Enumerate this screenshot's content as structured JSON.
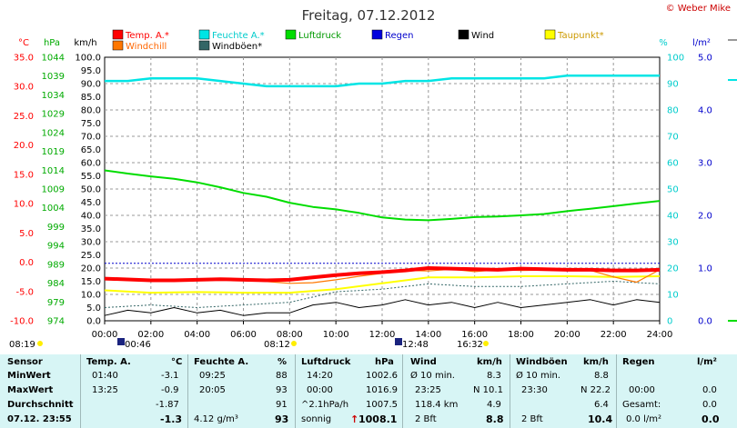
{
  "title": "Freitag, 07.12.2012",
  "copyright": "© Weber Mike",
  "colors": {
    "temp": "#ff0000",
    "humidity": "#00e5e5",
    "pressure": "#00dd00",
    "rain": "#0000dd",
    "wind": "#000000",
    "dewpoint": "#ffff00",
    "windchill": "#ff7700",
    "gusts": "#336666"
  },
  "axes": {
    "celsius": {
      "unit": "°C",
      "ticks": [
        "35.0",
        "30.0",
        "25.0",
        "20.0",
        "15.0",
        "10.0",
        "5.0",
        "0.0",
        "-5.0",
        "-10.0"
      ]
    },
    "hpa": {
      "unit": "hPa",
      "ticks": [
        "1044",
        "1039",
        "1034",
        "1029",
        "1024",
        "1019",
        "1014",
        "1009",
        "1004",
        "999",
        "994",
        "989",
        "984",
        "979",
        "974"
      ]
    },
    "kmh": {
      "unit": "km/h",
      "ticks": [
        "100.0",
        "95.0",
        "90.0",
        "85.0",
        "80.0",
        "75.0",
        "70.0",
        "65.0",
        "60.0",
        "55.0",
        "50.0",
        "45.0",
        "40.0",
        "35.0",
        "30.0",
        "25.0",
        "20.0",
        "15.0",
        "10.0",
        "5.0",
        "0.0"
      ]
    },
    "percent": {
      "unit": "%",
      "ticks": [
        "100",
        "90",
        "80",
        "70",
        "60",
        "50",
        "40",
        "30",
        "20",
        "10",
        "0"
      ]
    },
    "rain": {
      "unit": "l/m²",
      "ticks": [
        "5.0",
        "4.0",
        "3.0",
        "2.0",
        "1.0",
        "0.0"
      ]
    },
    "time": {
      "ticks": [
        "00:00",
        "02:00",
        "04:00",
        "06:00",
        "08:00",
        "10:00",
        "12:00",
        "14:00",
        "16:00",
        "18:00",
        "20:00",
        "22:00",
        "24:00"
      ]
    }
  },
  "events": {
    "sunrise": "08:19",
    "moonset": "00:46",
    "sunset": "08:12",
    "moonrise": "12:48",
    "time_1632": "16:32"
  },
  "chart_data": {
    "type": "line",
    "title": "Freitag, 07.12.2012",
    "x_unit": "hour",
    "xlim": [
      0,
      24
    ],
    "series": [
      {
        "name": "Temp. A.*",
        "axis": "°C",
        "color": "#ff0000",
        "x": [
          0,
          2,
          3,
          4,
          5,
          6,
          7,
          8,
          9,
          10,
          11,
          12,
          13,
          14,
          15,
          16,
          17,
          18,
          19,
          20,
          21,
          22,
          23,
          24
        ],
        "y": [
          -2.8,
          -3.1,
          -3.1,
          -3.0,
          -2.9,
          -3.0,
          -3.1,
          -3.0,
          -2.6,
          -2.2,
          -1.9,
          -1.7,
          -1.4,
          -1.0,
          -1.1,
          -1.2,
          -1.3,
          -1.1,
          -1.2,
          -1.3,
          -1.3,
          -1.4,
          -1.4,
          -1.3
        ]
      },
      {
        "name": "Feuchte A.*",
        "axis": "%",
        "color": "#00e5e5",
        "x": [
          0,
          1,
          2,
          3,
          4,
          5,
          6,
          7,
          8,
          9,
          10,
          11,
          12,
          13,
          14,
          15,
          16,
          17,
          18,
          19,
          20,
          21,
          22,
          23,
          24
        ],
        "y": [
          91,
          91,
          92,
          92,
          92,
          91,
          90,
          89,
          89,
          89,
          89,
          90,
          90,
          91,
          91,
          92,
          92,
          92,
          92,
          92,
          93,
          93,
          93,
          93,
          93
        ]
      },
      {
        "name": "Luftdruck",
        "axis": "hPa",
        "color": "#00dd00",
        "x": [
          0,
          1,
          2,
          3,
          4,
          5,
          6,
          7,
          8,
          9,
          10,
          11,
          12,
          13,
          14,
          15,
          16,
          17,
          18,
          19,
          20,
          21,
          22,
          23,
          24
        ],
        "y": [
          1016.8,
          1015.9,
          1015.1,
          1014.4,
          1013.4,
          1012.0,
          1010.4,
          1009.3,
          1007.6,
          1006.4,
          1005.7,
          1004.7,
          1003.4,
          1002.8,
          1002.6,
          1003.0,
          1003.5,
          1003.7,
          1004.0,
          1004.4,
          1005.2,
          1005.9,
          1006.6,
          1007.4,
          1008.1
        ]
      },
      {
        "name": "Regen",
        "axis": "l/m²",
        "color": "#0000dd",
        "x": [
          0,
          24
        ],
        "y": [
          0.0,
          0.0
        ]
      },
      {
        "name": "Wind",
        "axis": "km/h",
        "color": "#000000",
        "x": [
          0,
          1,
          2,
          3,
          4,
          5,
          6,
          7,
          8,
          9,
          10,
          11,
          12,
          13,
          14,
          15,
          16,
          17,
          18,
          19,
          20,
          21,
          22,
          23,
          24
        ],
        "y": [
          2,
          4,
          3,
          5,
          3,
          4,
          2,
          3,
          3,
          6,
          7,
          5,
          6,
          8,
          6,
          7,
          5,
          7,
          5,
          6,
          7,
          8,
          6,
          8,
          7
        ]
      },
      {
        "name": "Taupunkt*",
        "axis": "°C",
        "color": "#ffff00",
        "x": [
          0,
          2,
          4,
          6,
          8,
          10,
          12,
          14,
          16,
          18,
          20,
          22,
          24
        ],
        "y": [
          -4.8,
          -5.2,
          -5.1,
          -5.2,
          -5.2,
          -4.6,
          -3.6,
          -2.6,
          -2.6,
          -2.4,
          -2.4,
          -2.5,
          -2.4
        ]
      },
      {
        "name": "Windchill",
        "axis": "°C",
        "color": "#ff7700",
        "x": [
          0,
          2,
          4,
          6,
          8,
          9,
          10,
          11,
          12,
          13,
          14,
          15,
          16,
          17,
          18,
          20,
          21,
          22,
          23,
          24
        ],
        "y": [
          -2.8,
          -3.1,
          -3.0,
          -3.0,
          -3.6,
          -3.5,
          -3.0,
          -2.4,
          -1.9,
          -1.4,
          -1.5,
          -1.2,
          -1.6,
          -1.3,
          -1.4,
          -1.3,
          -1.4,
          -2.5,
          -3.4,
          -1.3
        ]
      },
      {
        "name": "Windböen*",
        "axis": "km/h",
        "color": "#336666",
        "x": [
          0,
          2,
          4,
          6,
          8,
          10,
          12,
          14,
          16,
          18,
          20,
          22,
          24
        ],
        "y": [
          5,
          6,
          5,
          6,
          7,
          11,
          12,
          14,
          13,
          13,
          14,
          15,
          14
        ]
      }
    ]
  },
  "table": {
    "headers": {
      "sensor": "Sensor",
      "temp": "Temp. A.",
      "temp_unit": "°C",
      "humidity": "Feuchte A.",
      "humidity_unit": "%",
      "pressure": "Luftdruck",
      "pressure_unit": "hPa",
      "wind": "Wind",
      "wind_unit": "km/h",
      "gusts": "Windböen",
      "gusts_unit": "km/h",
      "rain": "Regen",
      "rain_unit": "l/m²"
    },
    "row_labels": {
      "min": "MinWert",
      "max": "MaxWert",
      "avg": "Durchschnitt",
      "current": "07.12. 23:55"
    },
    "min": {
      "temp_time": "01:40",
      "temp": "-3.1",
      "hum_time": "09:25",
      "hum": "88",
      "pres_time": "14:20",
      "pres": "1002.6",
      "wind_label": "Ø 10 min.",
      "wind": "8.3",
      "gust_label": "Ø 10 min.",
      "gust": "8.8"
    },
    "max": {
      "temp_time": "13:25",
      "temp": "-0.9",
      "hum_time": "20:05",
      "hum": "93",
      "pres_time": "00:00",
      "pres": "1016.9",
      "wind_time": "23:25",
      "wind": "N 10.1",
      "gust_time": "23:30",
      "gust": "N 22.2",
      "rain_time": "00:00",
      "rain": "0.0"
    },
    "avg": {
      "temp": "-1.87",
      "hum": "91",
      "pres_label": "^2.1hPa/h",
      "pres": "1007.5",
      "wind_label": "118.4 km",
      "wind": "4.9",
      "gust": "6.4",
      "rain_label": "Gesamt:",
      "rain": "0.0"
    },
    "current": {
      "temp": "-1.3",
      "hum_label": "4.12 g/m³",
      "hum": "93",
      "pres_label": "sonnig",
      "pres_arrow": "↑",
      "pres": "1008.1",
      "wind_label": "2 Bft",
      "wind": "8.8",
      "gust_label": "2 Bft",
      "gust": "10.4",
      "rain_label": "0.0 l/m²",
      "rain": "0.0"
    }
  }
}
